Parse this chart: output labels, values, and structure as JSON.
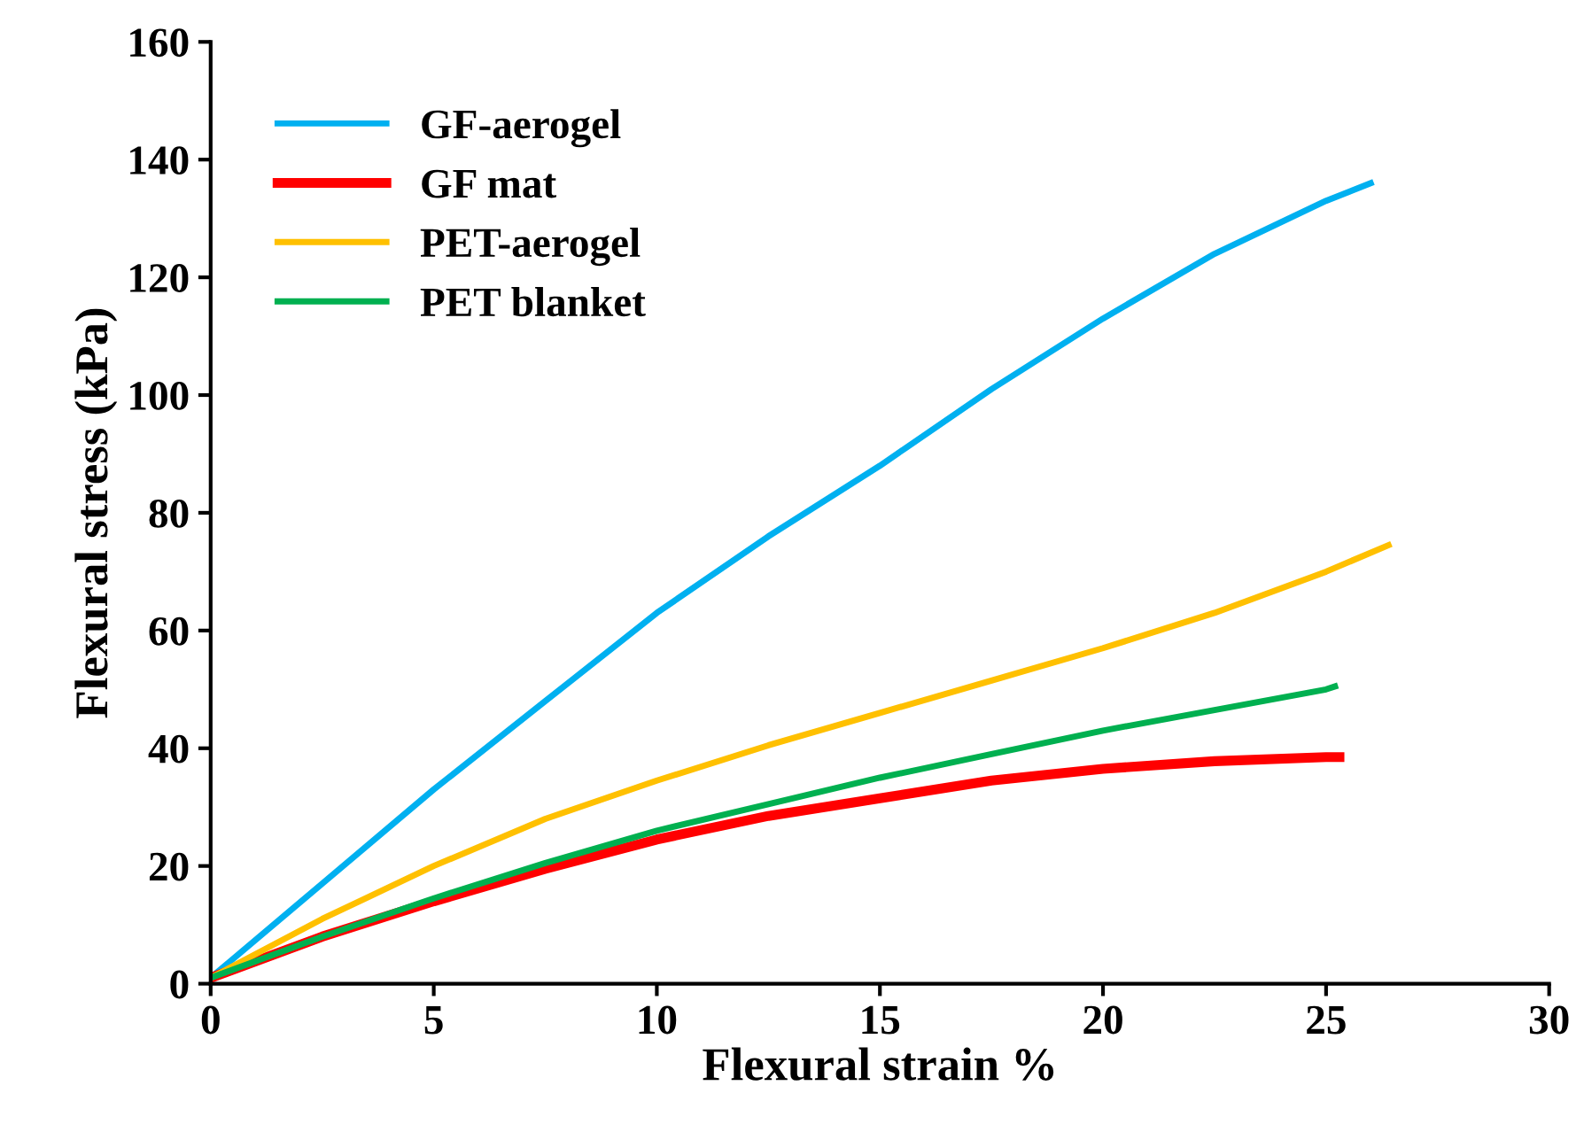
{
  "chart_data": {
    "type": "line",
    "xlabel": "Flexural strain %",
    "ylabel": "Flexural stress (kPa)",
    "xlim": [
      0,
      30
    ],
    "ylim": [
      0,
      160
    ],
    "xticks": [
      0,
      5,
      10,
      15,
      20,
      25,
      30
    ],
    "yticks": [
      0,
      20,
      40,
      60,
      80,
      100,
      120,
      140,
      160
    ],
    "grid": false,
    "legend": "top left",
    "marker": "none",
    "line_style": "solid",
    "series": [
      {
        "name": "GF-aerogel",
        "color": "#00b0f0",
        "x": [
          0,
          2.5,
          5,
          7.5,
          10,
          12.5,
          15,
          17.5,
          20,
          22.5,
          25,
          26
        ],
        "values": [
          1,
          17,
          33,
          48,
          63,
          76,
          88,
          101,
          113,
          124,
          133,
          136
        ]
      },
      {
        "name": "GF mat",
        "color": "#ff0000",
        "x": [
          0,
          2.5,
          5,
          7.5,
          10,
          12.5,
          15,
          17.5,
          20,
          22.5,
          25,
          25.3
        ],
        "values": [
          1,
          8,
          14,
          19.5,
          24.5,
          28.5,
          31.5,
          34.5,
          36.5,
          37.8,
          38.5,
          38.5
        ]
      },
      {
        "name": "PET-aerogel",
        "color": "#ffc000",
        "x": [
          0,
          2.5,
          5,
          7.5,
          10,
          12.5,
          15,
          17.5,
          20,
          22.5,
          25,
          26.4
        ],
        "values": [
          1,
          11,
          20,
          28,
          34.5,
          40.5,
          46,
          51.5,
          57,
          63,
          70,
          74.5
        ]
      },
      {
        "name": "PET blanket",
        "color": "#00b050",
        "x": [
          0,
          2.5,
          5,
          7.5,
          10,
          12.5,
          15,
          17.5,
          20,
          22.5,
          25,
          25.2
        ],
        "values": [
          1,
          8,
          14.5,
          20.5,
          26,
          30.5,
          35,
          39,
          43,
          46.5,
          50,
          50.5
        ]
      }
    ]
  }
}
